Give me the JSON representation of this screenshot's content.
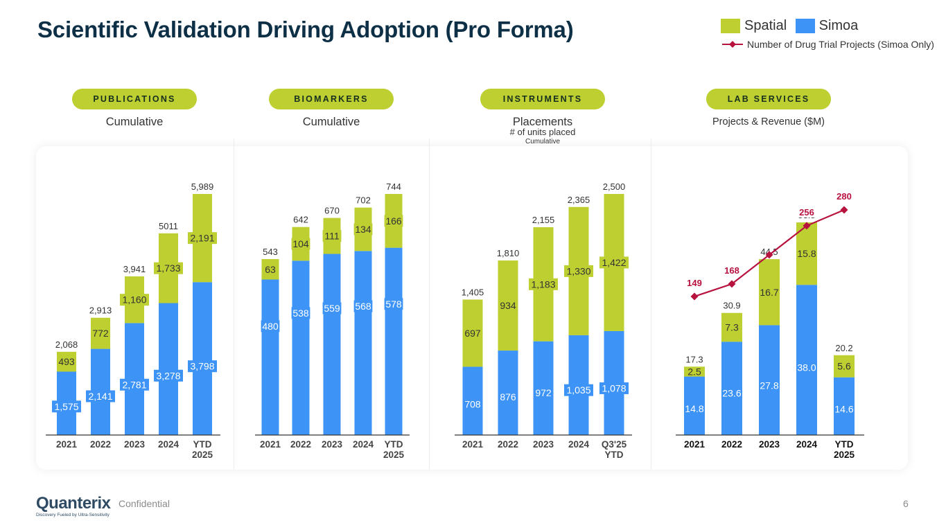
{
  "title": "Scientific Validation Driving Adoption (Pro Forma)",
  "colors": {
    "spatial": "#bdcf31",
    "simoa": "#3d94f6",
    "line": "#b8123f",
    "text": "#333333",
    "axis": "#333333"
  },
  "legend": {
    "spatial_label": "Spatial",
    "simoa_label": "Simoa",
    "line_label": "Number of Drug Trial Projects (Simoa Only)"
  },
  "sections": [
    {
      "pill": "PUBLICATIONS",
      "subtitle": "Cumulative"
    },
    {
      "pill": "BIOMARKERS",
      "subtitle": "Cumulative"
    },
    {
      "pill": "INSTRUMENTS",
      "subtitle": "Placements",
      "subtitle2": "# of units placed",
      "subtitle3": "Cumulative"
    },
    {
      "pill": "LAB SERVICES",
      "subtitle": "Projects & Revenue ($M)"
    }
  ],
  "chart_data": [
    {
      "type": "bar",
      "stacked": true,
      "title": "PUBLICATIONS",
      "subtitle": "Cumulative",
      "categories": [
        "2021",
        "2022",
        "2023",
        "2024",
        "YTD 2025"
      ],
      "series": [
        {
          "name": "Simoa",
          "values": [
            1575,
            2141,
            2781,
            3278,
            3798
          ],
          "labels": [
            "1,575",
            "2,141",
            "2,781",
            "3,278",
            "3,798"
          ]
        },
        {
          "name": "Spatial",
          "values": [
            493,
            772,
            1160,
            1733,
            2191
          ],
          "labels": [
            "493",
            "772",
            "1,160",
            "1,733",
            "2,191"
          ]
        }
      ],
      "totals": [
        "2,068",
        "2,913",
        "3,941",
        "5011",
        "5,989"
      ],
      "ylim": [
        0,
        5989
      ]
    },
    {
      "type": "bar",
      "stacked": true,
      "title": "BIOMARKERS",
      "subtitle": "Cumulative",
      "categories": [
        "2021",
        "2022",
        "2023",
        "2024",
        "YTD 2025"
      ],
      "series": [
        {
          "name": "Simoa",
          "values": [
            480,
            538,
            559,
            568,
            578
          ],
          "labels": [
            "480",
            "538",
            "559",
            "568",
            "578"
          ]
        },
        {
          "name": "Spatial",
          "values": [
            63,
            104,
            111,
            134,
            166
          ],
          "labels": [
            "63",
            "104",
            "111",
            "134",
            "166"
          ]
        }
      ],
      "totals": [
        "543",
        "642",
        "670",
        "702",
        "744"
      ],
      "ylim": [
        0,
        744
      ]
    },
    {
      "type": "bar",
      "stacked": true,
      "title": "INSTRUMENTS",
      "subtitle": "Placements — # of units placed, Cumulative",
      "categories": [
        "2021",
        "2022",
        "2023",
        "2024",
        "Q3'25 YTD"
      ],
      "series": [
        {
          "name": "Simoa",
          "values": [
            708,
            876,
            972,
            1035,
            1078
          ],
          "labels": [
            "708",
            "876",
            "972",
            "1,035",
            "1,078"
          ]
        },
        {
          "name": "Spatial",
          "values": [
            697,
            934,
            1183,
            1330,
            1422
          ],
          "labels": [
            "697",
            "934",
            "1,183",
            "1,330",
            "1,422"
          ]
        }
      ],
      "totals": [
        "1,405",
        "1,810",
        "2,155",
        "2,365",
        "2,500"
      ],
      "ylim": [
        0,
        2500
      ]
    },
    {
      "type": "bar",
      "stacked": true,
      "title": "LAB SERVICES",
      "subtitle": "Projects & Revenue ($M)",
      "categories": [
        "2021",
        "2022",
        "2023",
        "2024",
        "YTD 2025"
      ],
      "series": [
        {
          "name": "Simoa",
          "values": [
            14.8,
            23.6,
            27.8,
            38.0,
            14.6
          ],
          "labels": [
            "14.8",
            "23.6",
            "27.8",
            "38.0",
            "14.6"
          ]
        },
        {
          "name": "Spatial",
          "values": [
            2.5,
            7.3,
            16.7,
            15.8,
            5.6
          ],
          "labels": [
            "2.5",
            "7.3",
            "16.7",
            "15.8",
            "5.6"
          ]
        }
      ],
      "totals": [
        "17.3",
        "30.9",
        "44.5",
        "53.8",
        "20.2"
      ],
      "ylim": [
        0,
        61
      ],
      "line": {
        "name": "Number of Drug Trial Projects (Simoa Only)",
        "values": [
          149,
          168,
          212,
          256,
          280
        ],
        "labels": [
          "149",
          "168",
          "",
          "256",
          "280"
        ],
        "ylim": [
          0,
          320
        ]
      }
    }
  ],
  "footer": {
    "logo": "Quanterix",
    "tagline": "Discovery Fueled by Ultra-Sensitivity",
    "confidential": "Confidential",
    "page": "6"
  }
}
